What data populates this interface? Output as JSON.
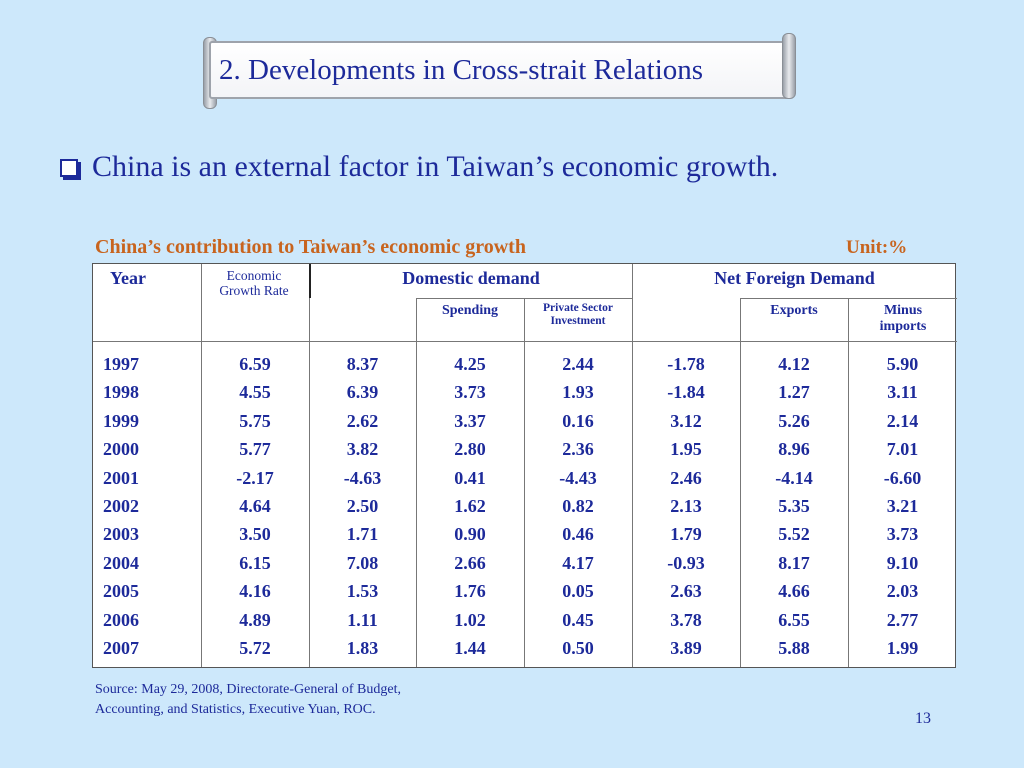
{
  "slide": {
    "title": "2. Developments in Cross-strait Relations",
    "bullet": "China is an external factor in Taiwan’s economic growth.",
    "table_title": "China’s contribution to Taiwan’s economic growth",
    "unit": "Unit:%",
    "source_line1": "Source: May 29, 2008, Directorate-General of Budget,",
    "source_line2": "Accounting, and Statistics, Executive Yuan, ROC.",
    "page_number": "13"
  },
  "table": {
    "headers": {
      "year": "Year",
      "growth_rate": "Economic Growth Rate",
      "domestic_demand": "Domestic demand",
      "spending": "Spending",
      "private_investment": "Private Sector Investment",
      "net_foreign_demand": "Net Foreign Demand",
      "exports": "Exports",
      "minus_imports": "Minus imports"
    },
    "columns": {
      "year": [
        "1997",
        "1998",
        "1999",
        "2000",
        "2001",
        "2002",
        "2003",
        "2004",
        "2005",
        "2006",
        "2007"
      ],
      "growth_rate": [
        "6.59",
        "4.55",
        "5.75",
        "5.77",
        "-2.17",
        "4.64",
        "3.50",
        "6.15",
        "4.16",
        "4.89",
        "5.72"
      ],
      "domestic_demand": [
        "8.37",
        "6.39",
        "2.62",
        "3.82",
        "-4.63",
        "2.50",
        "1.71",
        "7.08",
        "1.53",
        "1.11",
        "1.83"
      ],
      "spending": [
        "4.25",
        "3.73",
        "3.37",
        "2.80",
        "0.41",
        "1.62",
        "0.90",
        "2.66",
        "1.76",
        "1.02",
        "1.44"
      ],
      "private_investment": [
        "2.44",
        "1.93",
        "0.16",
        "2.36",
        "-4.43",
        "0.82",
        "0.46",
        "4.17",
        "0.05",
        "0.45",
        "0.50"
      ],
      "net_foreign_demand": [
        "-1.78",
        "-1.84",
        "3.12",
        "1.95",
        "2.46",
        "2.13",
        "1.79",
        "-0.93",
        "2.63",
        "3.78",
        "3.89"
      ],
      "exports": [
        "4.12",
        "1.27",
        "5.26",
        "8.96",
        "-4.14",
        "5.35",
        "5.52",
        "8.17",
        "4.66",
        "6.55",
        "5.88"
      ],
      "minus_imports": [
        "5.90",
        "3.11",
        "2.14",
        "7.01",
        "-6.60",
        "3.21",
        "3.73",
        "9.10",
        "2.03",
        "2.77",
        "1.99"
      ]
    }
  }
}
